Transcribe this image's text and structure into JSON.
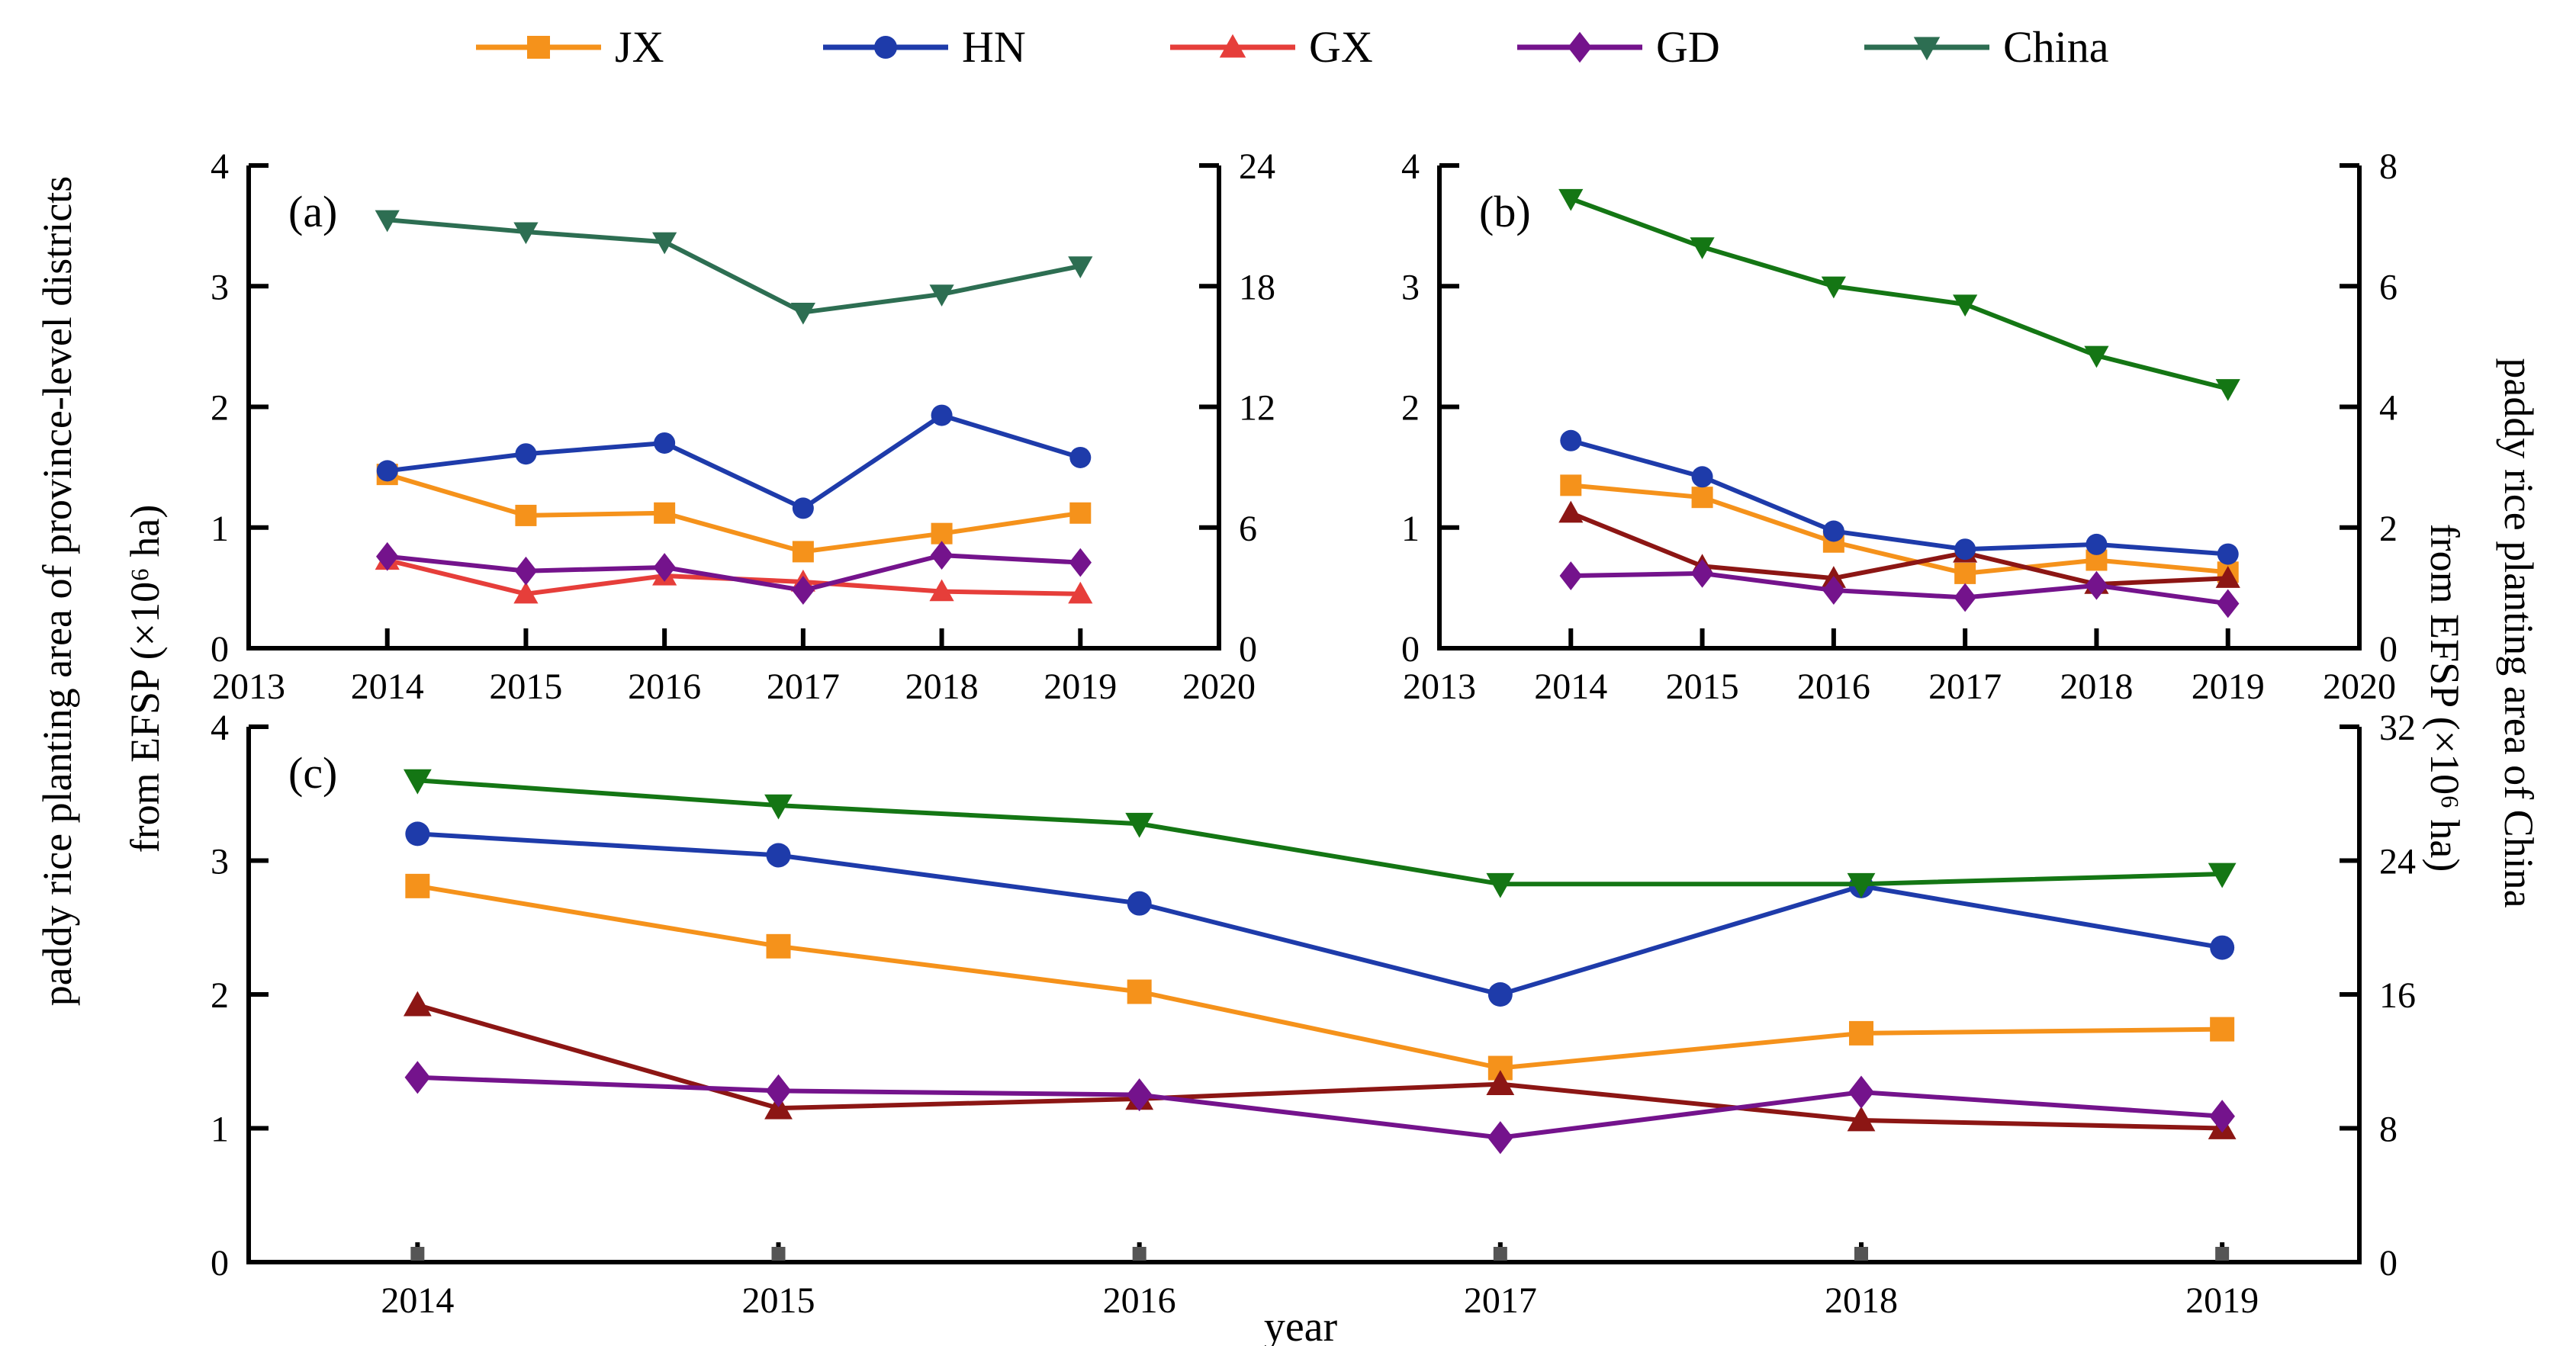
{
  "figure": {
    "background": "#ffffff",
    "axis_color": "#000000",
    "tick_square_color": "#555555"
  },
  "legend": {
    "items": [
      {
        "label": "JX",
        "color": "#F5921B",
        "marker": "square"
      },
      {
        "label": "HN",
        "color": "#1E3BAA",
        "marker": "circle"
      },
      {
        "label": "GX",
        "color": "#E63E3A",
        "marker": "triangle-up"
      },
      {
        "label": "GD",
        "color": "#74138C",
        "marker": "diamond"
      },
      {
        "label": "China",
        "color": "#2D6E52",
        "marker": "triangle-down"
      }
    ]
  },
  "labels": {
    "left_line1": "paddy rice planting area of province-level districts",
    "left_line2": "from EFSP (×10⁶ ha)",
    "right_line1": "paddy rice planting area of China",
    "right_line2": "from EFSP (×10⁶ ha)",
    "xlabel_c": "year"
  },
  "chart_data": [
    {
      "id": "a",
      "panel": "(a)",
      "type": "line",
      "x_type": "linear",
      "x_range": [
        2013,
        2020
      ],
      "x_ticks": [
        2013,
        2014,
        2015,
        2016,
        2017,
        2018,
        2019,
        2020
      ],
      "x_points": [
        2014,
        2015,
        2016,
        2017,
        2018,
        2019
      ],
      "left_axis": {
        "range": [
          0,
          4
        ],
        "ticks": [
          0,
          1,
          2,
          3,
          4
        ]
      },
      "right_axis": {
        "range": [
          0,
          24
        ],
        "ticks": [
          0,
          6,
          12,
          18,
          24
        ]
      },
      "tick_squares": false,
      "series": [
        {
          "name": "JX",
          "axis": "left",
          "color": "#F5921B",
          "marker": "square",
          "values": [
            1.44,
            1.1,
            1.12,
            0.8,
            0.95,
            1.12
          ]
        },
        {
          "name": "GX",
          "axis": "left",
          "color": "#E63E3A",
          "marker": "triangle-up",
          "values": [
            0.73,
            0.45,
            0.6,
            0.55,
            0.47,
            0.45
          ]
        },
        {
          "name": "GD",
          "axis": "left",
          "color": "#74138C",
          "marker": "diamond",
          "values": [
            0.76,
            0.64,
            0.67,
            0.48,
            0.77,
            0.71
          ]
        },
        {
          "name": "HN",
          "axis": "left",
          "color": "#1E3BAA",
          "marker": "circle",
          "values": [
            1.47,
            1.61,
            1.7,
            1.16,
            1.93,
            1.58
          ]
        },
        {
          "name": "China",
          "axis": "right",
          "color": "#2D6E52",
          "marker": "triangle-down",
          "values": [
            21.3,
            20.7,
            20.2,
            16.7,
            17.6,
            19.0
          ]
        }
      ]
    },
    {
      "id": "b",
      "panel": "(b)",
      "type": "line",
      "x_type": "linear",
      "x_range": [
        2013,
        2020
      ],
      "x_ticks": [
        2013,
        2014,
        2015,
        2016,
        2017,
        2018,
        2019,
        2020
      ],
      "x_points": [
        2014,
        2015,
        2016,
        2017,
        2018,
        2019
      ],
      "left_axis": {
        "range": [
          0,
          4
        ],
        "ticks": [
          0,
          1,
          2,
          3,
          4
        ]
      },
      "right_axis": {
        "range": [
          0,
          8
        ],
        "ticks": [
          0,
          2,
          4,
          6,
          8
        ]
      },
      "tick_squares": false,
      "series": [
        {
          "name": "JX",
          "axis": "left",
          "color": "#F5921B",
          "marker": "square",
          "values": [
            1.35,
            1.25,
            0.88,
            0.62,
            0.73,
            0.63
          ]
        },
        {
          "name": "GX",
          "axis": "left",
          "color": "#8C1614",
          "marker": "triangle-up",
          "values": [
            1.12,
            0.68,
            0.58,
            0.79,
            0.53,
            0.58
          ]
        },
        {
          "name": "GD",
          "axis": "left",
          "color": "#74138C",
          "marker": "diamond",
          "values": [
            0.6,
            0.62,
            0.48,
            0.42,
            0.52,
            0.37
          ]
        },
        {
          "name": "HN",
          "axis": "left",
          "color": "#1E3BAA",
          "marker": "circle",
          "values": [
            1.72,
            1.42,
            0.97,
            0.82,
            0.86,
            0.78
          ]
        },
        {
          "name": "China",
          "axis": "right",
          "color": "#147614",
          "marker": "triangle-down",
          "values": [
            7.45,
            6.65,
            6.0,
            5.7,
            4.85,
            4.3
          ]
        }
      ]
    },
    {
      "id": "c",
      "panel": "(c)",
      "type": "line",
      "x_type": "category",
      "x_ticks": [
        2014,
        2015,
        2016,
        2017,
        2018,
        2019
      ],
      "x_points": [
        2014,
        2015,
        2016,
        2017,
        2018,
        2019
      ],
      "xlabel": "year",
      "left_axis": {
        "range": [
          0,
          4
        ],
        "ticks": [
          0,
          1,
          2,
          3,
          4
        ]
      },
      "right_axis": {
        "range": [
          0,
          32
        ],
        "ticks": [
          0,
          8,
          16,
          24,
          32
        ]
      },
      "tick_squares": true,
      "series": [
        {
          "name": "JX",
          "axis": "left",
          "color": "#F5921B",
          "marker": "square",
          "values": [
            2.81,
            2.36,
            2.02,
            1.45,
            1.71,
            1.74
          ]
        },
        {
          "name": "GX",
          "axis": "left",
          "color": "#8C1614",
          "marker": "triangle-up",
          "values": [
            1.92,
            1.15,
            1.22,
            1.33,
            1.06,
            1.0
          ]
        },
        {
          "name": "GD",
          "axis": "left",
          "color": "#74138C",
          "marker": "diamond",
          "values": [
            1.38,
            1.28,
            1.25,
            0.93,
            1.27,
            1.09
          ]
        },
        {
          "name": "HN",
          "axis": "left",
          "color": "#1E3BAA",
          "marker": "circle",
          "values": [
            3.2,
            3.04,
            2.68,
            2.0,
            2.81,
            2.35
          ]
        },
        {
          "name": "China",
          "axis": "right",
          "color": "#147614",
          "marker": "triangle-down",
          "values": [
            28.8,
            27.3,
            26.2,
            22.6,
            22.6,
            23.2
          ]
        }
      ]
    }
  ]
}
